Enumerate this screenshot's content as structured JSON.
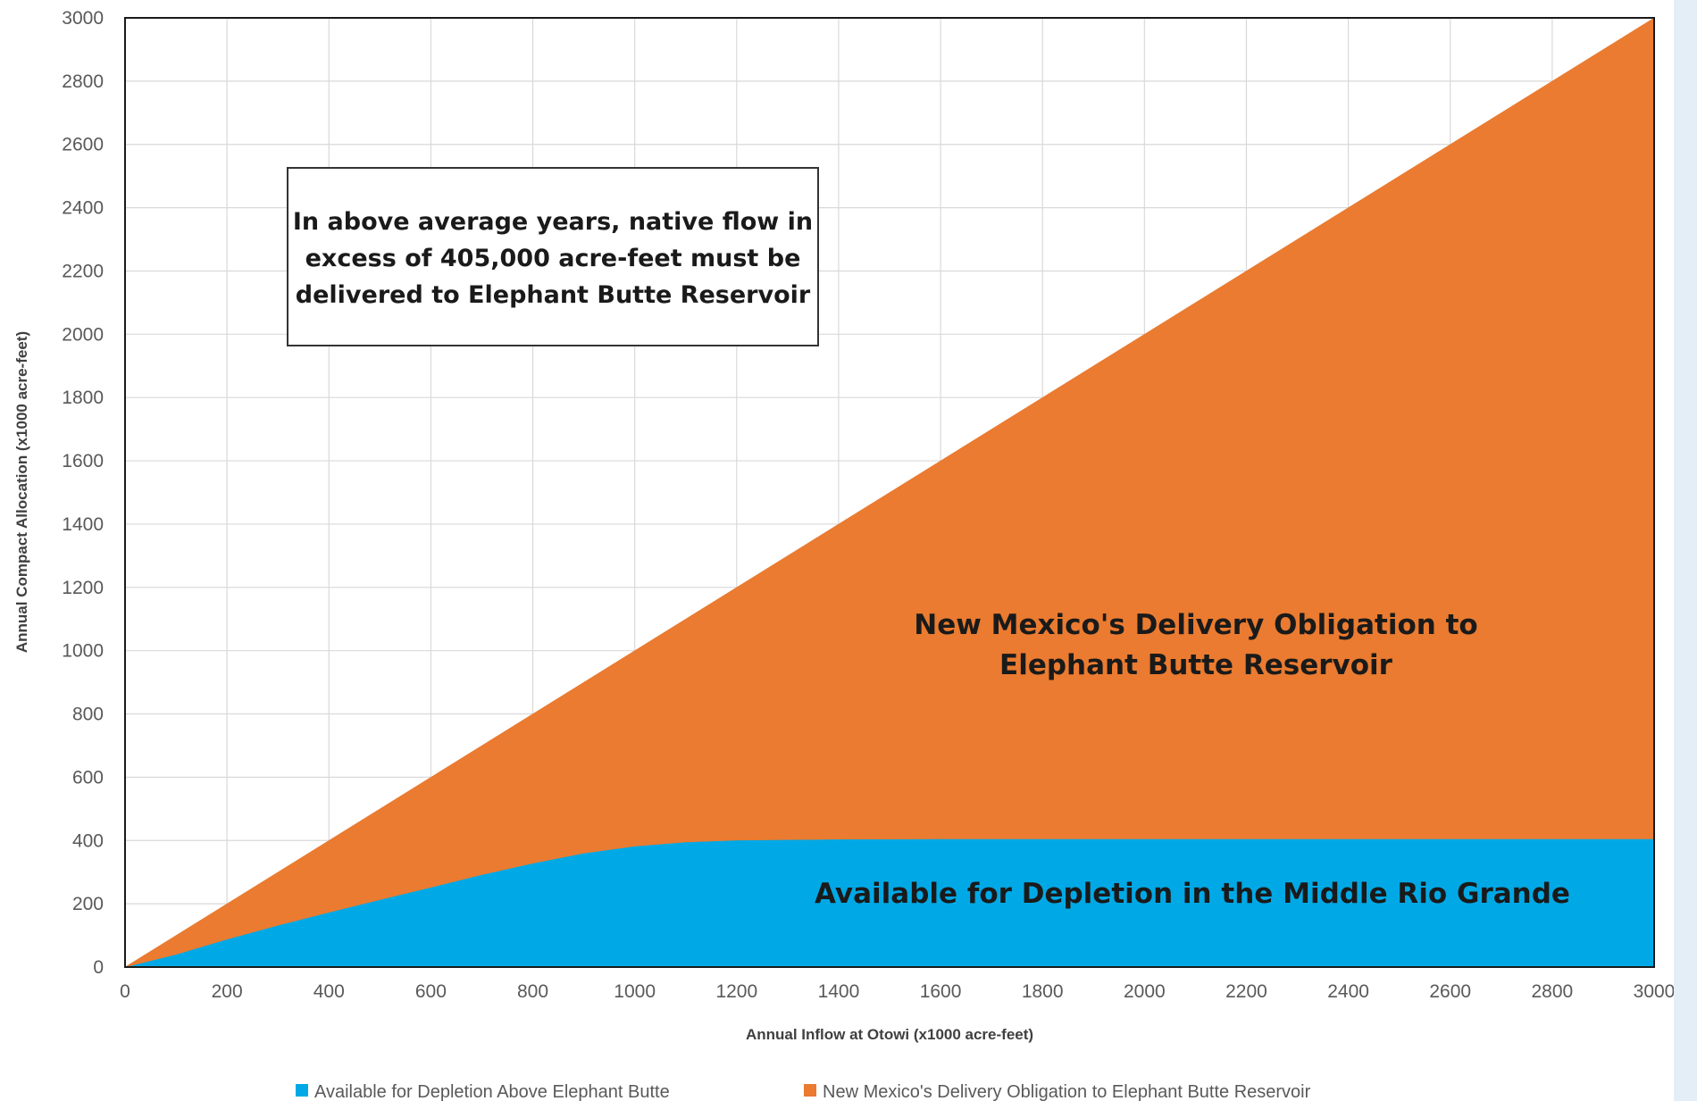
{
  "chart_data": {
    "type": "area",
    "stacked": true,
    "xlabel": "Annual Inflow at Otowi (x1000 acre-feet)",
    "ylabel": "Annual Compact Allocation (x1000 acre-feet)",
    "xlim": [
      0,
      3000
    ],
    "ylim": [
      0,
      3000
    ],
    "x_ticks": [
      0,
      200,
      400,
      600,
      800,
      1000,
      1200,
      1400,
      1600,
      1800,
      2000,
      2200,
      2400,
      2600,
      2800,
      3000
    ],
    "y_ticks": [
      0,
      200,
      400,
      600,
      800,
      1000,
      1200,
      1400,
      1600,
      1800,
      2000,
      2200,
      2400,
      2600,
      2800,
      3000
    ],
    "grid": true,
    "legend_position": "bottom",
    "x": [
      0,
      100,
      200,
      300,
      400,
      500,
      600,
      700,
      800,
      900,
      1000,
      1100,
      1200,
      1400,
      1600,
      2000,
      2500,
      3000
    ],
    "series": [
      {
        "name": "Available for Depletion Above Elephant Butte",
        "color": "#00a9e6",
        "values": [
          0,
          40,
          88,
          132,
          173,
          213,
          252,
          292,
          328,
          360,
          382,
          395,
          401,
          404,
          405,
          405,
          405,
          405
        ]
      },
      {
        "name": "New Mexico's Delivery Obligation to Elephant Butte Reservoir",
        "color": "#ea7b30",
        "values": [
          0,
          60,
          112,
          168,
          227,
          287,
          348,
          408,
          472,
          540,
          618,
          705,
          799,
          996,
          1195,
          1595,
          2095,
          2595
        ]
      }
    ],
    "annotations": [
      {
        "id": "flow-note",
        "lines": [
          "In above average years, native flow in",
          "excess of 405,000 acre-feet must be",
          "delivered to Elephant Butte Reservoir"
        ],
        "boxed": true
      },
      {
        "id": "delivery-label",
        "lines": [
          "New Mexico's Delivery Obligation to",
          "Elephant Butte Reservoir"
        ],
        "boxed": false
      },
      {
        "id": "depletion-label",
        "lines": [
          "Available for Depletion in the Middle Rio Grande"
        ],
        "boxed": false
      }
    ]
  }
}
